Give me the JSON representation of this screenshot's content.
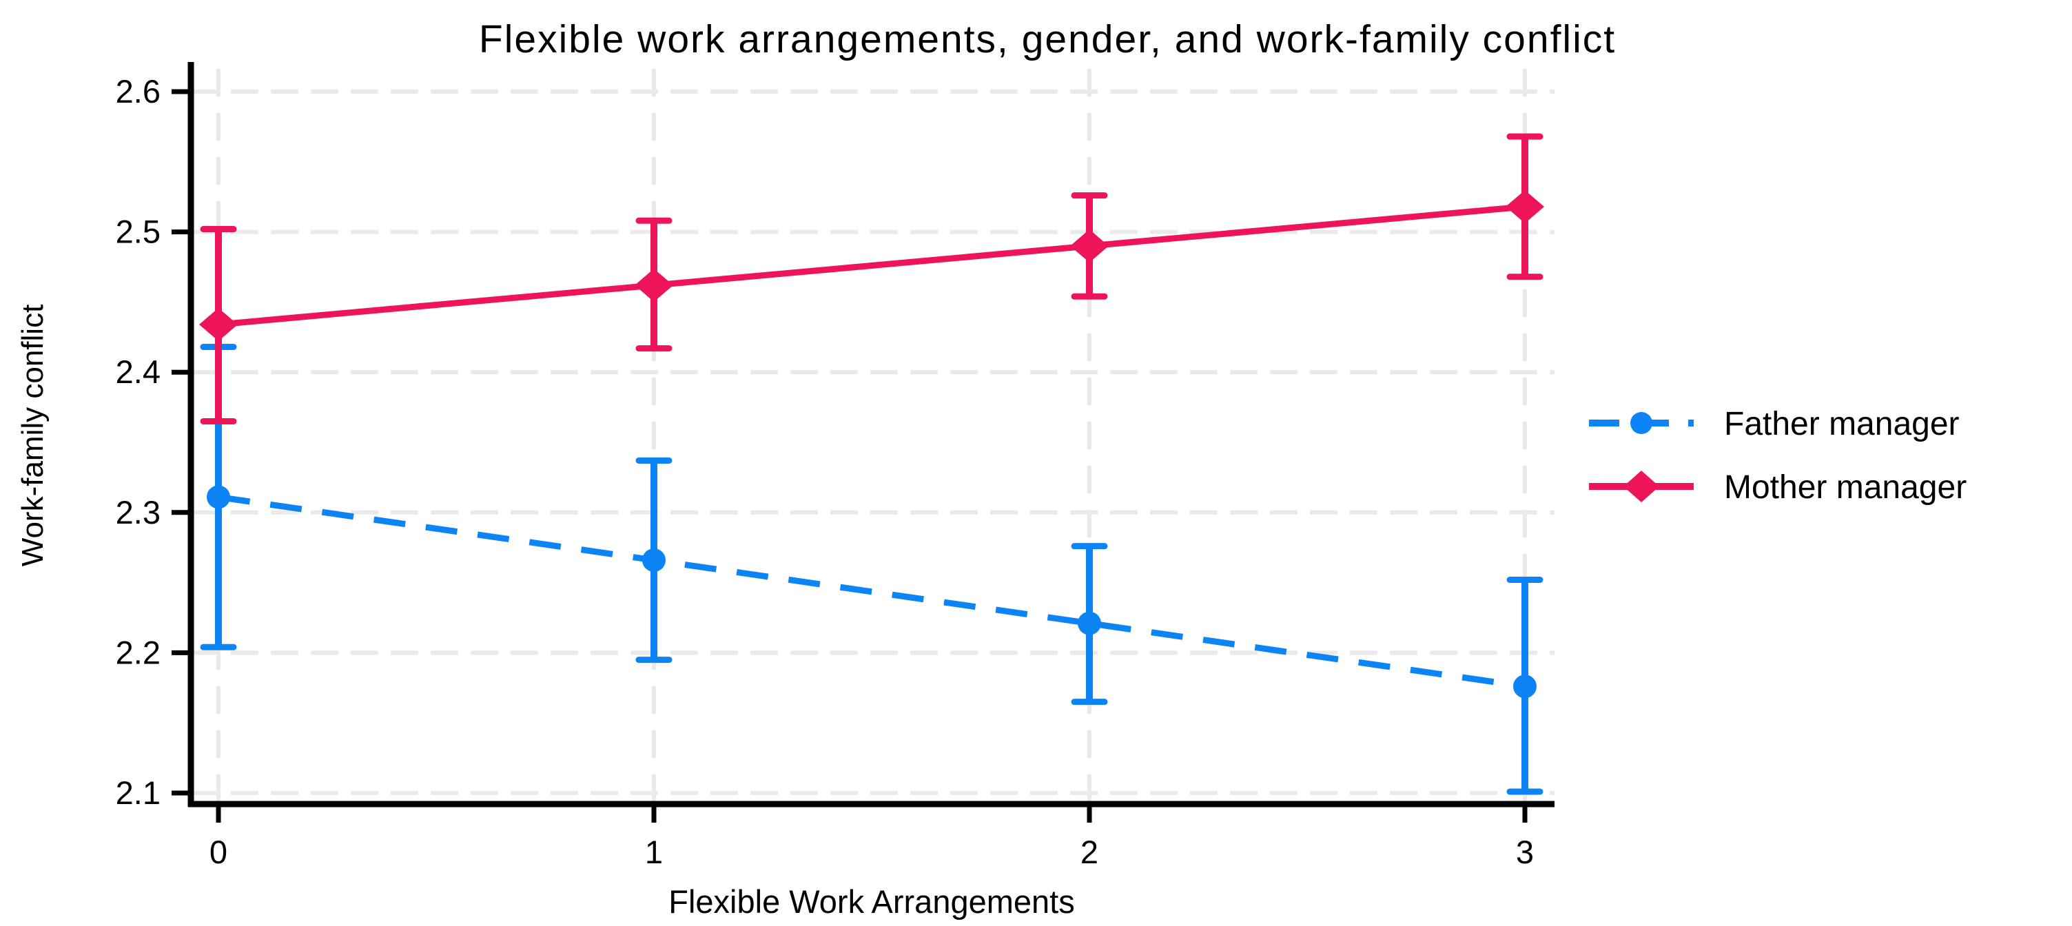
{
  "title": "Flexible work arrangements, gender, and work-family conflict",
  "chart_data": {
    "type": "line",
    "title": "Flexible work arrangements, gender, and work-family conflict",
    "xlabel": "Flexible Work Arrangements",
    "ylabel": "Work-family conflict",
    "x": [
      0,
      1,
      2,
      3
    ],
    "xticks": [
      "0",
      "1",
      "2",
      "3"
    ],
    "yticks": [
      2.6,
      2.5,
      2.4,
      2.3,
      2.2,
      2.1
    ],
    "ylim": [
      2.1,
      2.6
    ],
    "xlim": [
      -0.07,
      3.07
    ],
    "grid": true,
    "error_bars": true,
    "legend_position": "right-center",
    "series": [
      {
        "name": "Father manager",
        "color": "#0d84f5",
        "line_style": "dashed",
        "marker": "circle",
        "values": [
          2.311,
          2.266,
          2.221,
          2.176
        ],
        "ci_low": [
          2.204,
          2.195,
          2.165,
          2.101
        ],
        "ci_high": [
          2.418,
          2.337,
          2.276,
          2.252
        ]
      },
      {
        "name": "Mother manager",
        "color": "#ed1459",
        "line_style": "solid",
        "marker": "diamond",
        "values": [
          2.434,
          2.462,
          2.49,
          2.518
        ],
        "ci_low": [
          2.365,
          2.417,
          2.454,
          2.468
        ],
        "ci_high": [
          2.502,
          2.508,
          2.526,
          2.568
        ]
      }
    ],
    "colors": {
      "father": "#0d84f5",
      "mother": "#ed1459",
      "grid": "#eaeaea",
      "axis": "#000000",
      "background": "#ffffff"
    }
  }
}
